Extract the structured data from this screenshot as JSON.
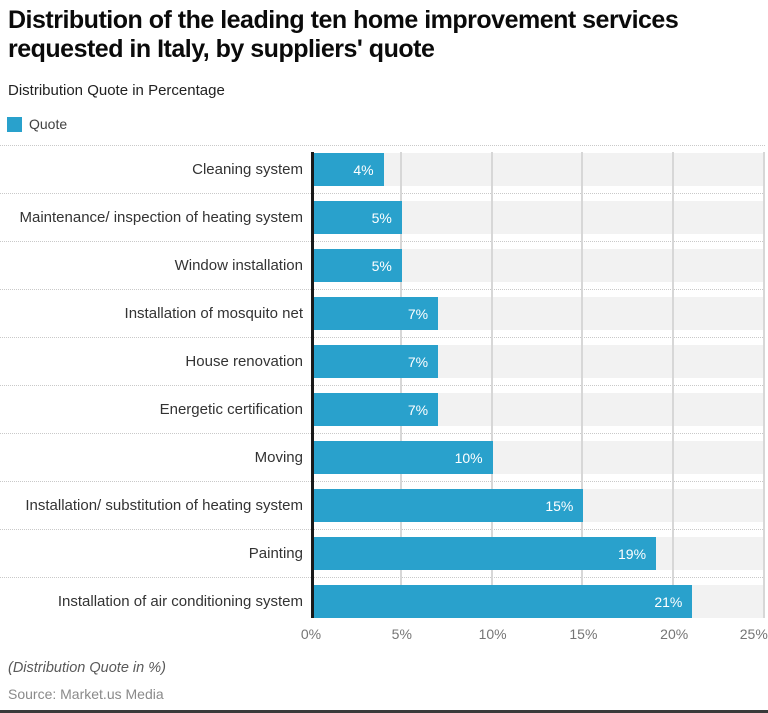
{
  "header": {
    "title": "Distribution of the leading ten home improvement services\nrequested in Italy, by suppliers' quote",
    "subtitle": "Distribution Quote in Percentage",
    "legend": {
      "label": "Quote",
      "swatch_color": "#29A1CC"
    }
  },
  "chart_data": {
    "type": "bar",
    "orientation": "horizontal",
    "title": "Distribution of the leading ten home improvement services requested in Italy, by suppliers' quote",
    "subtitle": "Distribution Quote in Percentage",
    "series_name": "Quote",
    "categories": [
      "Cleaning system",
      "Maintenance/ inspection of heating system",
      "Window installation",
      "Installation of mosquito net",
      "House renovation",
      "Energetic certification",
      "Moving",
      "Installation/ substitution of heating system",
      "Painting",
      "Installation of air conditioning system"
    ],
    "values": [
      4,
      5,
      5,
      7,
      7,
      7,
      10,
      15,
      19,
      21
    ],
    "value_labels": [
      "4%",
      "5%",
      "5%",
      "7%",
      "7%",
      "7%",
      "10%",
      "15%",
      "19%",
      "21%"
    ],
    "xlim": [
      0,
      25
    ],
    "x_ticks": [
      "0%",
      "5%",
      "10%",
      "15%",
      "20%",
      "25%"
    ],
    "xlabel": "",
    "ylabel": "",
    "grid": true,
    "legend_position": "top-left",
    "bar_color": "#29A1CC",
    "band_color": "#F2F2F2"
  },
  "footer": {
    "note": "(Distribution Quote in %)",
    "source": "Source: Market.us Media"
  }
}
